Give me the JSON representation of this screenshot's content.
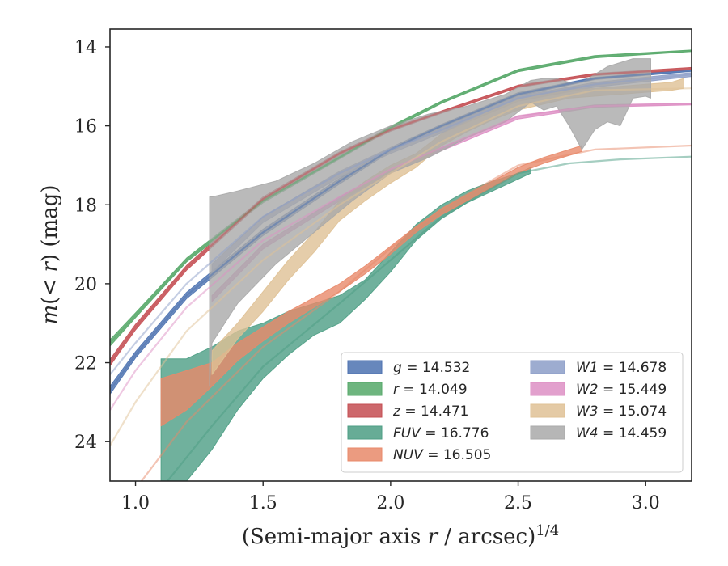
{
  "chart_data": {
    "type": "line",
    "title": "",
    "xlabel": "(Semi-major axis r / arcsec)",
    "xlabel_var": "r",
    "xlabel_before": "(Semi-major axis ",
    "xlabel_after": " / arcsec)",
    "xlabel_sup": "1/4",
    "ylabel": "m(< r) (mag)",
    "ylabel_m": "m",
    "ylabel_mid": "(< ",
    "ylabel_r": "r",
    "ylabel_end": ") (mag)",
    "xlim": [
      0.9,
      3.18
    ],
    "ylim": [
      25.0,
      13.55
    ],
    "y_inverted": true,
    "xticks": [
      1.0,
      1.5,
      2.0,
      2.5,
      3.0
    ],
    "xtick_labels": [
      "1.0",
      "1.5",
      "2.0",
      "2.5",
      "3.0"
    ],
    "yticks": [
      14,
      16,
      18,
      20,
      22,
      24
    ],
    "ytick_labels": [
      "14",
      "16",
      "18",
      "20",
      "22",
      "24"
    ],
    "grid": false,
    "legend_position": "lower-right",
    "legend_columns": 2,
    "series": [
      {
        "name": "g = 14.532",
        "label_var": "g",
        "label_val": "14.532",
        "color": "#4c72b0",
        "thin_x": [
          0.9,
          1.0,
          1.2,
          1.5,
          1.8,
          2.0,
          2.2,
          2.5,
          2.8,
          3.18
        ],
        "thin_y": [
          22.7,
          21.8,
          20.3,
          18.7,
          17.4,
          16.6,
          16.0,
          15.2,
          14.8,
          14.6
        ],
        "band_x": [
          0.9,
          1.0,
          1.2,
          1.5,
          1.8,
          2.0,
          2.2,
          2.5,
          2.8,
          3.18
        ],
        "band_lo": [
          22.6,
          21.72,
          20.22,
          18.62,
          17.33,
          16.55,
          15.96,
          15.16,
          14.77,
          14.58
        ],
        "band_hi": [
          22.8,
          21.88,
          20.38,
          18.78,
          17.47,
          16.65,
          16.04,
          15.24,
          14.83,
          14.62
        ]
      },
      {
        "name": "r = 14.049",
        "label_var": "r",
        "label_val": "14.049",
        "color": "#55a868",
        "thin_x": [
          0.9,
          1.0,
          1.2,
          1.5,
          1.8,
          2.0,
          2.2,
          2.5,
          2.8,
          3.18
        ],
        "thin_y": [
          21.5,
          20.8,
          19.4,
          17.9,
          16.8,
          16.05,
          15.4,
          14.6,
          14.25,
          14.1
        ],
        "band_x": [
          0.9,
          1.0,
          1.2,
          1.5,
          1.8,
          2.0,
          2.2,
          2.5,
          2.8,
          3.18
        ],
        "band_lo": [
          21.42,
          20.74,
          19.35,
          17.85,
          16.76,
          16.01,
          15.37,
          14.57,
          14.22,
          14.08
        ],
        "band_hi": [
          21.58,
          20.86,
          19.45,
          17.95,
          16.84,
          16.09,
          15.43,
          14.63,
          14.28,
          14.12
        ]
      },
      {
        "name": "z = 14.471",
        "label_var": "z",
        "label_val": "14.471",
        "color": "#c44e52",
        "thin_x": [
          0.9,
          1.0,
          1.2,
          1.5,
          1.8,
          2.0,
          2.2,
          2.5,
          2.8,
          3.18
        ],
        "thin_y": [
          22.0,
          21.1,
          19.6,
          17.85,
          16.7,
          16.1,
          15.65,
          15.0,
          14.7,
          14.55
        ],
        "band_x": [
          0.9,
          1.0,
          1.2,
          1.5,
          1.8,
          2.0,
          2.2,
          2.5,
          2.8,
          3.18
        ],
        "band_lo": [
          21.92,
          21.03,
          19.54,
          17.8,
          16.66,
          16.06,
          15.62,
          14.97,
          14.67,
          14.52
        ],
        "band_hi": [
          22.08,
          21.17,
          19.66,
          17.9,
          16.74,
          16.14,
          15.68,
          15.03,
          14.73,
          14.58
        ]
      },
      {
        "name": "FUV = 16.776",
        "label_var": "FUV",
        "label_val": "16.776",
        "color": "#4c9e84",
        "thin_x": [
          1.1,
          1.3,
          1.5,
          1.8,
          2.0,
          2.2,
          2.5,
          2.7,
          2.9,
          3.18
        ],
        "thin_y": [
          25.2,
          23.6,
          22.1,
          20.5,
          19.4,
          18.3,
          17.2,
          16.95,
          16.85,
          16.78
        ],
        "band_x": [
          1.1,
          1.2,
          1.3,
          1.4,
          1.5,
          1.6,
          1.7,
          1.8,
          1.9,
          2.0,
          2.1,
          2.2,
          2.3,
          2.4,
          2.5,
          2.55
        ],
        "band_lo": [
          21.9,
          21.9,
          21.6,
          21.2,
          21.0,
          20.7,
          20.5,
          20.3,
          19.9,
          19.2,
          18.5,
          18.0,
          17.65,
          17.4,
          17.2,
          17.05
        ],
        "band_hi": [
          25.0,
          25.0,
          24.2,
          23.2,
          22.4,
          21.8,
          21.3,
          21.0,
          20.4,
          19.7,
          18.9,
          18.35,
          17.95,
          17.65,
          17.35,
          17.2
        ]
      },
      {
        "name": "NUV = 16.505",
        "label_var": "NUV",
        "label_val": "16.505",
        "color": "#e8896a",
        "thin_x": [
          0.9,
          1.0,
          1.2,
          1.5,
          1.8,
          2.0,
          2.2,
          2.5,
          2.8,
          3.18
        ],
        "thin_y": [
          26.5,
          25.2,
          23.5,
          21.6,
          20.2,
          19.1,
          18.1,
          17.0,
          16.6,
          16.5
        ],
        "band_x": [
          1.1,
          1.2,
          1.3,
          1.4,
          1.5,
          1.6,
          1.7,
          1.8,
          1.9,
          2.0,
          2.1,
          2.2,
          2.3,
          2.4,
          2.5,
          2.6,
          2.75
        ],
        "band_lo": [
          22.4,
          22.2,
          22.0,
          21.5,
          21.1,
          20.7,
          20.35,
          20.0,
          19.55,
          19.05,
          18.55,
          18.1,
          17.75,
          17.4,
          17.05,
          16.8,
          16.5
        ],
        "band_hi": [
          23.6,
          23.2,
          22.6,
          21.95,
          21.45,
          21.0,
          20.6,
          20.2,
          19.75,
          19.25,
          18.7,
          18.25,
          17.9,
          17.55,
          17.2,
          16.95,
          16.65
        ]
      },
      {
        "name": "W1 = 14.678",
        "label_var": "W1",
        "label_val": "14.678",
        "color": "#8c9dc8",
        "thin_x": [
          0.9,
          1.0,
          1.2,
          1.5,
          1.8,
          2.0,
          2.2,
          2.5,
          2.8,
          3.18
        ],
        "thin_y": [
          22.3,
          21.5,
          20.0,
          18.3,
          17.2,
          16.6,
          16.1,
          15.3,
          14.95,
          14.7
        ],
        "band_x": [
          1.3,
          1.5,
          1.8,
          2.0,
          2.2,
          2.5,
          2.8,
          3.18
        ],
        "band_lo": [
          19.5,
          18.3,
          17.15,
          16.55,
          16.05,
          15.25,
          14.9,
          14.65
        ],
        "band_hi": [
          19.7,
          18.45,
          17.3,
          16.7,
          16.18,
          15.38,
          15.02,
          14.75
        ]
      },
      {
        "name": "W2 = 15.449",
        "label_var": "W2",
        "label_val": "15.449",
        "color": "#dd8fc4",
        "thin_x": [
          0.9,
          1.0,
          1.2,
          1.5,
          1.8,
          2.0,
          2.2,
          2.5,
          2.8,
          3.18
        ],
        "thin_y": [
          23.2,
          22.2,
          20.6,
          18.9,
          17.8,
          17.1,
          16.55,
          15.75,
          15.5,
          15.45
        ],
        "band_x": [
          1.3,
          1.5,
          1.8,
          2.0,
          2.2,
          2.5,
          2.8,
          3.18
        ],
        "band_lo": [
          20.3,
          19.0,
          17.8,
          17.1,
          16.55,
          15.75,
          15.47,
          15.43
        ],
        "band_hi": [
          20.45,
          19.12,
          17.9,
          17.2,
          16.63,
          15.83,
          15.53,
          15.47
        ]
      },
      {
        "name": "W3 = 15.074",
        "label_var": "W3",
        "label_val": "15.074",
        "color": "#dfc195",
        "thin_x": [
          0.9,
          1.0,
          1.2,
          1.5,
          1.8,
          2.0,
          2.2,
          2.5,
          2.8,
          3.18
        ],
        "thin_y": [
          24.1,
          23.0,
          21.2,
          19.4,
          18.0,
          17.2,
          16.4,
          15.5,
          15.1,
          15.05
        ],
        "band_x": [
          1.3,
          1.4,
          1.5,
          1.6,
          1.7,
          1.8,
          1.9,
          2.0,
          2.1,
          2.2,
          2.3,
          2.4,
          2.5,
          2.6,
          2.7,
          2.8,
          2.9,
          3.0,
          3.1,
          3.15
        ],
        "band_lo": [
          21.7,
          21.0,
          20.2,
          19.4,
          18.7,
          17.9,
          17.4,
          17.0,
          16.7,
          16.2,
          15.9,
          15.6,
          15.35,
          15.2,
          15.1,
          15.05,
          15.0,
          14.95,
          14.9,
          14.8
        ],
        "band_hi": [
          22.3,
          21.4,
          20.7,
          19.9,
          19.2,
          18.4,
          17.9,
          17.45,
          17.05,
          16.5,
          16.15,
          15.85,
          15.6,
          15.45,
          15.3,
          15.25,
          15.2,
          15.15,
          15.1,
          15.05
        ]
      },
      {
        "name": "W4 = 14.459",
        "label_var": "W4",
        "label_val": "14.459",
        "color": "#a9a9a9",
        "band_x": [
          1.29,
          1.3,
          1.4,
          1.55,
          1.7,
          1.85,
          2.0,
          2.15,
          2.3,
          2.45,
          2.55,
          2.6,
          2.65,
          2.7,
          2.75,
          2.8,
          2.85,
          2.9,
          2.95,
          3.0,
          3.02
        ],
        "band_lo": [
          17.8,
          17.8,
          17.65,
          17.4,
          16.95,
          16.4,
          16.0,
          15.7,
          15.5,
          15.2,
          14.85,
          14.8,
          14.8,
          14.9,
          14.9,
          14.7,
          14.5,
          14.4,
          14.3,
          14.3,
          14.3
        ],
        "band_hi": [
          22.6,
          21.5,
          20.5,
          19.5,
          18.7,
          17.9,
          17.2,
          16.8,
          16.3,
          15.9,
          15.4,
          15.6,
          15.5,
          16.0,
          16.6,
          16.1,
          15.9,
          16.0,
          15.3,
          15.25,
          15.3
        ]
      }
    ]
  }
}
